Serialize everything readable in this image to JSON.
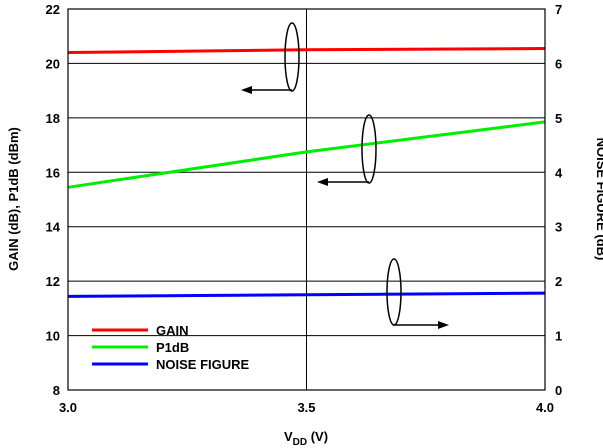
{
  "chart_data": {
    "type": "line",
    "xlabel_main": "V",
    "xlabel_sub": "DD",
    "xlabel_unit": " (V)",
    "ylabel_left": "GAIN (dB), P1dB (dBm)",
    "ylabel_right": "NOISE FIGURE (dB)",
    "xlim": [
      3.0,
      4.0
    ],
    "ylim_left": [
      8,
      22
    ],
    "ylim_right": [
      0,
      7
    ],
    "x_ticks": [
      3.0,
      3.5,
      4.0
    ],
    "x_tick_labels": [
      "3.0",
      "3.5",
      "4.0"
    ],
    "y_left_ticks": [
      8,
      10,
      12,
      14,
      16,
      18,
      20,
      22
    ],
    "y_left_tick_labels": [
      "8",
      "10",
      "12",
      "14",
      "16",
      "18",
      "20",
      "22"
    ],
    "y_right_ticks": [
      0,
      1,
      2,
      3,
      4,
      5,
      6,
      7
    ],
    "y_right_tick_labels": [
      "0",
      "1",
      "2",
      "3",
      "4",
      "5",
      "6",
      "7"
    ],
    "grid": true,
    "legend_position": "bottom-left",
    "series": [
      {
        "name": "GAIN",
        "axis": "left",
        "color": "#ff0000",
        "x": [
          3.0,
          3.5,
          4.0
        ],
        "y": [
          20.4,
          20.5,
          20.55
        ]
      },
      {
        "name": "P1dB",
        "axis": "left",
        "color": "#00ee00",
        "x": [
          3.0,
          3.25,
          3.5,
          3.75,
          4.0
        ],
        "y": [
          15.45,
          16.1,
          16.75,
          17.3,
          17.85
        ]
      },
      {
        "name": "NOISE FIGURE",
        "axis": "right",
        "color": "#0000ff",
        "x": [
          3.0,
          3.5,
          4.0
        ],
        "y": [
          1.72,
          1.75,
          1.78
        ]
      }
    ]
  }
}
